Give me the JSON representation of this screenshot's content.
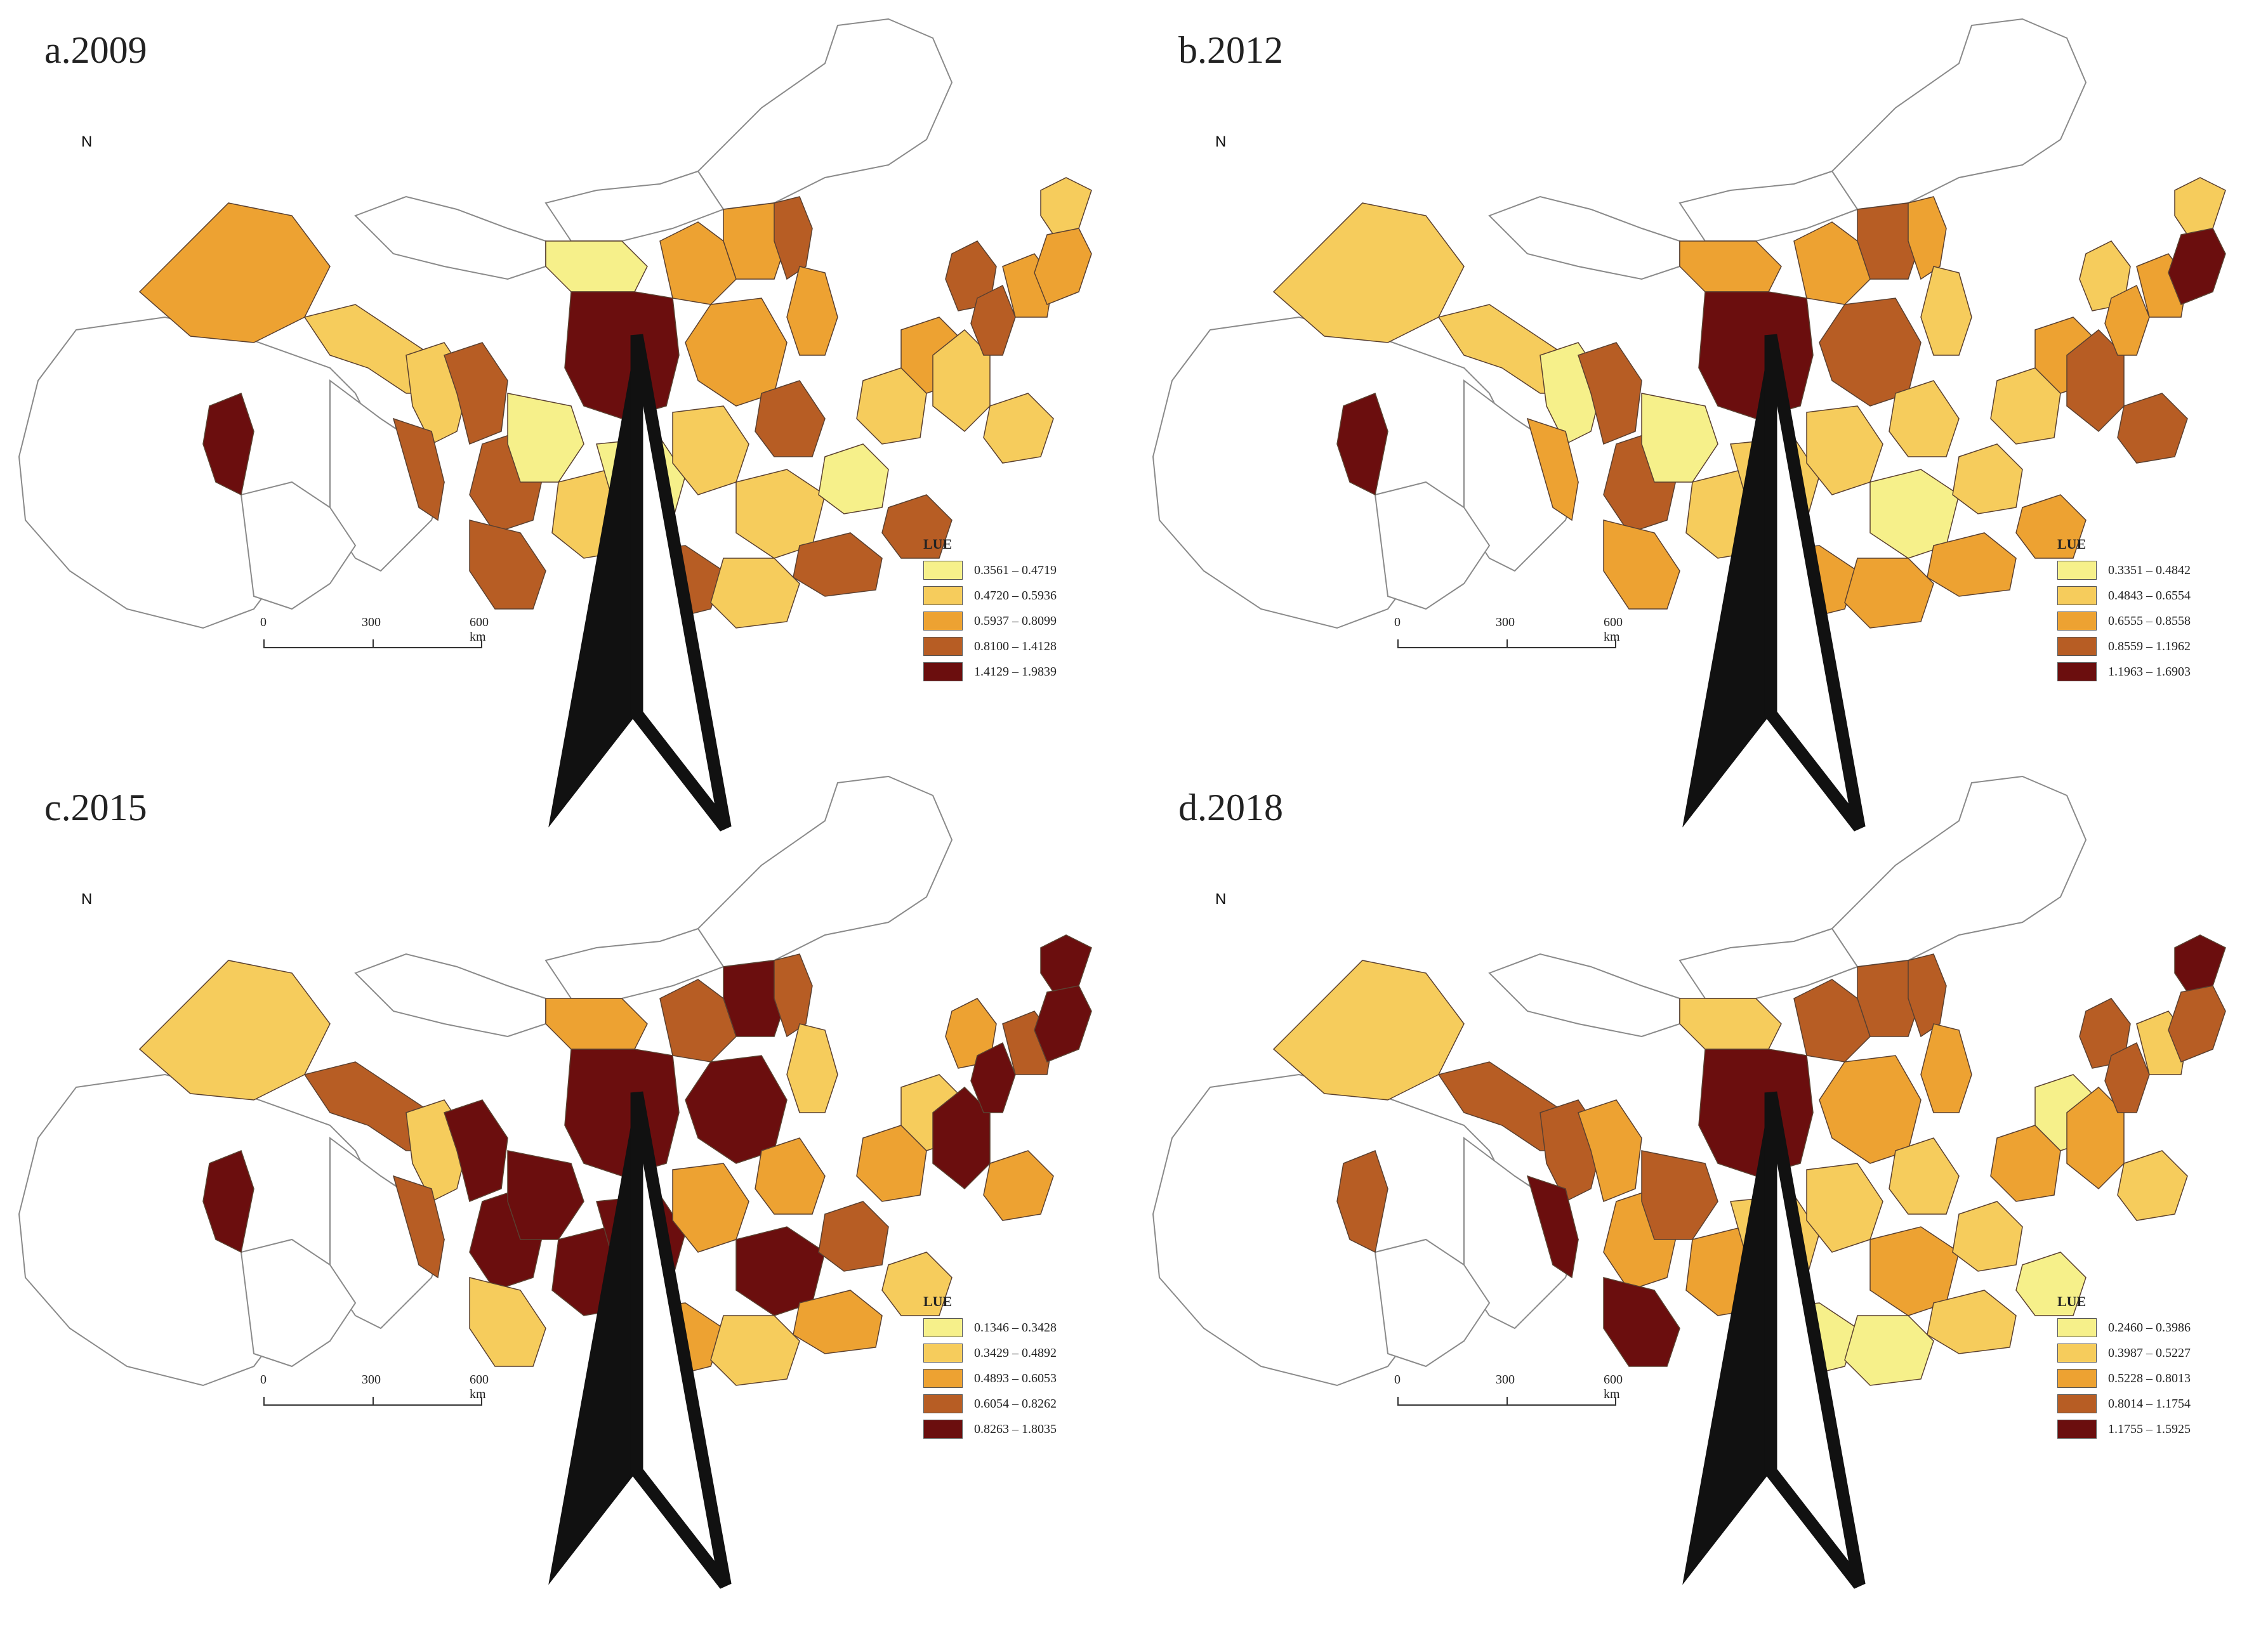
{
  "panels": [
    {
      "title": "a.2009",
      "legend_title": "LUE",
      "classes": [
        {
          "range": "0.3561 – 0.4719",
          "color": "#f6f08a"
        },
        {
          "range": "0.4720 – 0.5936",
          "color": "#f6cc5c"
        },
        {
          "range": "0.5937 – 0.8099",
          "color": "#eda232"
        },
        {
          "range": "0.8100 – 1.4128",
          "color": "#b75d24"
        },
        {
          "range": "1.4129 – 1.9839",
          "color": "#6b0e0e"
        }
      ],
      "scale": [
        "0",
        "300",
        "600 km"
      ],
      "north": "N"
    },
    {
      "title": "b.2012",
      "legend_title": "LUE",
      "classes": [
        {
          "range": "0.3351 – 0.4842",
          "color": "#f6f08a"
        },
        {
          "range": "0.4843 – 0.6554",
          "color": "#f6cc5c"
        },
        {
          "range": "0.6555 – 0.8558",
          "color": "#eda232"
        },
        {
          "range": "0.8559 – 1.1962",
          "color": "#b75d24"
        },
        {
          "range": "1.1963 – 1.6903",
          "color": "#6b0e0e"
        }
      ],
      "scale": [
        "0",
        "300",
        "600 km"
      ],
      "north": "N"
    },
    {
      "title": "c.2015",
      "legend_title": "LUE",
      "classes": [
        {
          "range": "0.1346 – 0.3428",
          "color": "#f6f08a"
        },
        {
          "range": "0.3429 – 0.4892",
          "color": "#f6cc5c"
        },
        {
          "range": "0.4893 – 0.6053",
          "color": "#eda232"
        },
        {
          "range": "0.6054 – 0.8262",
          "color": "#b75d24"
        },
        {
          "range": "0.8263 – 1.8035",
          "color": "#6b0e0e"
        }
      ],
      "scale": [
        "0",
        "300",
        "600 km"
      ],
      "north": "N"
    },
    {
      "title": "d.2018",
      "legend_title": "LUE",
      "classes": [
        {
          "range": "0.2460 – 0.3986",
          "color": "#f6f08a"
        },
        {
          "range": "0.3987 – 0.5227",
          "color": "#f6cc5c"
        },
        {
          "range": "0.5228 – 0.8013",
          "color": "#eda232"
        },
        {
          "range": "0.8014 – 1.1754",
          "color": "#b75d24"
        },
        {
          "range": "1.1755 – 1.5925",
          "color": "#6b0e0e"
        }
      ],
      "scale": [
        "0",
        "300",
        "600 km"
      ],
      "north": "N"
    }
  ],
  "colors": {
    "outline": "#8a8a8a",
    "empty": "#ffffff",
    "region_border": "#5a4030"
  }
}
